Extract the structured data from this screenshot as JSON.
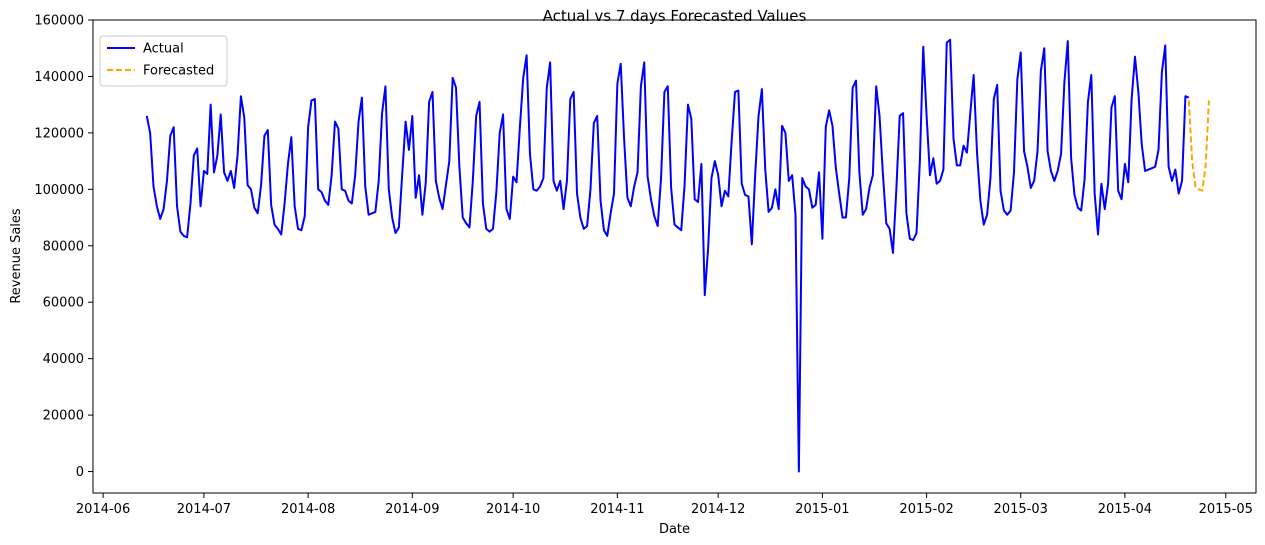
{
  "chart_data": {
    "type": "line",
    "title": "Actual vs 7 days Forecasted Values",
    "xlabel": "Date",
    "ylabel": "Revenue Sales",
    "xlim": [
      "2014-05-29",
      "2015-05-10"
    ],
    "ylim": [
      -7600,
      160000
    ],
    "x_ticks": [
      "2014-06",
      "2014-07",
      "2014-08",
      "2014-09",
      "2014-10",
      "2014-11",
      "2014-12",
      "2015-01",
      "2015-02",
      "2015-03",
      "2015-04",
      "2015-05"
    ],
    "y_ticks": [
      0,
      20000,
      40000,
      60000,
      80000,
      100000,
      120000,
      140000,
      160000
    ],
    "legend": {
      "position": "top-left"
    },
    "grid": false,
    "series": [
      {
        "name": "Actual",
        "color": "#0000ff",
        "style": "solid",
        "start": "2014-06-14",
        "values": [
          126000,
          120000,
          101000,
          94000,
          89500,
          93000,
          103000,
          119000,
          122000,
          94000,
          85000,
          83500,
          83000,
          95000,
          112000,
          114500,
          94000,
          106500,
          105500,
          130000,
          106000,
          112000,
          126500,
          106000,
          103000,
          106500,
          100500,
          112000,
          133000,
          125500,
          101500,
          100000,
          93500,
          91500,
          101500,
          119000,
          121000,
          94500,
          87500,
          86000,
          84000,
          95000,
          109000,
          118500,
          94000,
          86000,
          85500,
          90500,
          122000,
          131500,
          132000,
          100000,
          99000,
          96000,
          94500,
          105000,
          124000,
          121500,
          100000,
          99500,
          96000,
          95000,
          105000,
          124000,
          132500,
          101000,
          91000,
          91500,
          92000,
          103000,
          127000,
          136500,
          100000,
          90000,
          84500,
          86500,
          105500,
          124000,
          114000,
          126000,
          97000,
          105000,
          91000,
          102500,
          131000,
          134500,
          103000,
          97000,
          93000,
          101500,
          110000,
          139500,
          136000,
          108000,
          90000,
          88000,
          86500,
          103000,
          126000,
          131000,
          95000,
          86000,
          85000,
          86000,
          99000,
          120000,
          126500,
          93000,
          89500,
          104500,
          102500,
          122000,
          139500,
          147500,
          112500,
          100000,
          99500,
          101000,
          104000,
          136000,
          145000,
          103000,
          99500,
          103000,
          93000,
          103000,
          132000,
          134500,
          98500,
          90000,
          86000,
          87000,
          100000,
          123500,
          126000,
          96000,
          85500,
          83500,
          91500,
          98500,
          137500,
          144500,
          118000,
          97000,
          94000,
          101000,
          106000,
          136500,
          145000,
          104500,
          96500,
          90500,
          87000,
          104000,
          134500,
          136500,
          100500,
          87500,
          86500,
          85500,
          101500,
          130000,
          125000,
          96500,
          95500,
          109000,
          62500,
          79000,
          104000,
          110000,
          105000,
          94000,
          99500,
          97500,
          117000,
          134500,
          135000,
          102000,
          98000,
          97500,
          80500,
          105000,
          126000,
          135500,
          107000,
          92000,
          93500,
          100000,
          93000,
          122500,
          120000,
          103000,
          105000,
          91000,
          0,
          104000,
          101000,
          100000,
          93500,
          94500,
          106000,
          82500,
          122000,
          128000,
          122500,
          107500,
          98500,
          90000,
          90000,
          104000,
          136000,
          138500,
          106000,
          91000,
          93000,
          100500,
          105000,
          136500,
          126000,
          105500,
          88000,
          86000,
          77500,
          100000,
          126000,
          127000,
          91500,
          82500,
          82000,
          84500,
          110000,
          150500,
          126000,
          105000,
          111000,
          102000,
          103000,
          107000,
          152000,
          153000,
          118000,
          108500,
          108500,
          115500,
          113000,
          127000,
          140500,
          113000,
          96000,
          87500,
          91000,
          104000,
          132000,
          137000,
          99500,
          92500,
          91000,
          92500,
          106000,
          139000,
          148500,
          113500,
          108000,
          100500,
          103000,
          113500,
          142000,
          150000,
          113500,
          106500,
          103000,
          106500,
          112500,
          138000,
          152500,
          111000,
          98000,
          93500,
          92500,
          103500,
          131000,
          140500,
          98500,
          84000,
          102000,
          93000,
          102000,
          129000,
          133000,
          99500,
          96500,
          109000,
          102500,
          132000,
          147000,
          134500,
          116000,
          106500,
          107000,
          107500,
          108000,
          114000,
          141500,
          151000,
          108000,
          103000,
          107000,
          98500,
          103000,
          133000,
          132500
        ]
      },
      {
        "name": "Forecasted",
        "color": "#ffa500",
        "style": "dashed",
        "start": "2015-04-20",
        "values": [
          131500,
          110000,
          101000,
          100000,
          99500,
          108000,
          131500
        ]
      }
    ]
  }
}
